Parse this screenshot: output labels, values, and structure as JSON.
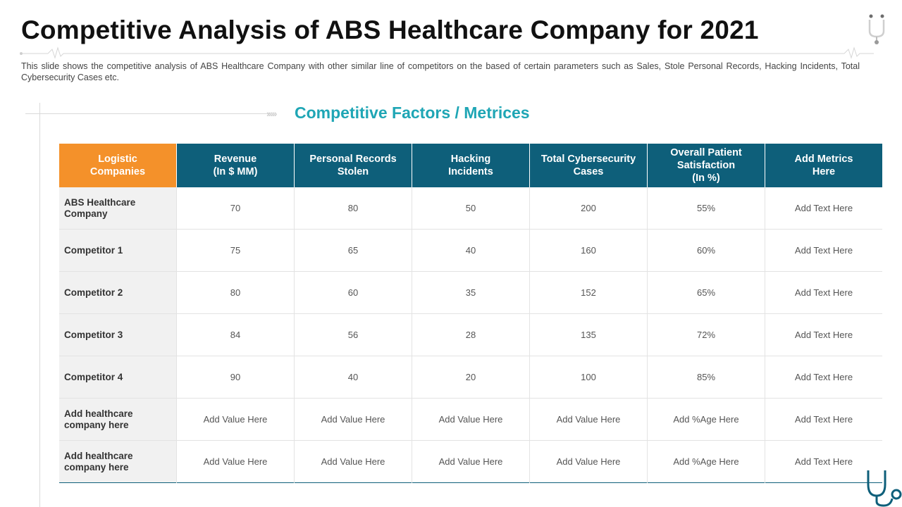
{
  "title": "Competitive Analysis of ABS Healthcare Company for 2021",
  "subtitle": "This slide shows the competitive analysis of ABS Healthcare Company with other similar line of competitors on the based of certain parameters such as Sales, Stole Personal Records, Hacking Incidents, Total Cybersecurity Cases etc.",
  "section_title": "Competitive Factors / Metrices",
  "icons": {
    "top": "stethoscope-icon",
    "bottom": "stethoscope-icon",
    "heartline": "heartbeat-line"
  },
  "colors": {
    "header": "#0e5f7a",
    "first_header": "#f4912a",
    "accent_title": "#1fa6b5",
    "row_label_bg": "#f1f1f1"
  },
  "table": {
    "headers": [
      [
        "Logistic",
        "Companies"
      ],
      [
        "Revenue",
        "(In $ MM)"
      ],
      [
        "Personal Records",
        "Stolen"
      ],
      [
        "Hacking",
        "Incidents"
      ],
      [
        "Total Cybersecurity",
        "Cases"
      ],
      [
        "Overall Patient",
        "Satisfaction",
        "(In %)"
      ],
      [
        "Add Metrics",
        "Here"
      ]
    ],
    "rows": [
      {
        "label": [
          "ABS Healthcare",
          "Company"
        ],
        "cells": [
          "70",
          "80",
          "50",
          "200",
          "55%",
          "Add Text Here"
        ]
      },
      {
        "label": [
          "Competitor 1"
        ],
        "cells": [
          "75",
          "65",
          "40",
          "160",
          "60%",
          "Add Text Here"
        ]
      },
      {
        "label": [
          "Competitor 2"
        ],
        "cells": [
          "80",
          "60",
          "35",
          "152",
          "65%",
          "Add Text Here"
        ]
      },
      {
        "label": [
          "Competitor 3"
        ],
        "cells": [
          "84",
          "56",
          "28",
          "135",
          "72%",
          "Add Text Here"
        ]
      },
      {
        "label": [
          "Competitor 4"
        ],
        "cells": [
          "90",
          "40",
          "20",
          "100",
          "85%",
          "Add Text Here"
        ]
      },
      {
        "label": [
          "Add healthcare",
          "company here"
        ],
        "cells": [
          "Add Value Here",
          "Add Value Here",
          "Add Value Here",
          "Add Value Here",
          "Add %Age Here",
          "Add Text Here"
        ]
      },
      {
        "label": [
          "Add healthcare",
          "company here"
        ],
        "cells": [
          "Add Value Here",
          "Add Value Here",
          "Add Value Here",
          "Add Value Here",
          "Add %Age Here",
          "Add Text Here"
        ]
      }
    ]
  }
}
